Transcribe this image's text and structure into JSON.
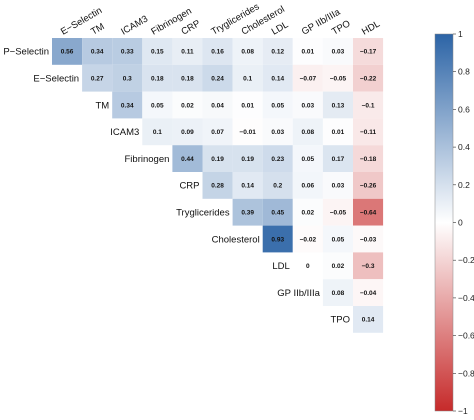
{
  "chart_data": {
    "type": "heatmap",
    "variables": [
      "P−Selectin",
      "E−Selectin",
      "TM",
      "ICAM3",
      "Fibrinogen",
      "CRP",
      "Tryglicerides",
      "Cholesterol",
      "LDL",
      "GP IIb/IIIa",
      "TPO",
      "HDL"
    ],
    "rows": [
      {
        "label": "P−Selectin",
        "values": [
          "0.56",
          "0.34",
          "0.33",
          "0.15",
          "0.11",
          "0.16",
          "0.08",
          "0.12",
          "0.01",
          "0.03",
          "−0.17"
        ]
      },
      {
        "label": "E−Selectin",
        "values": [
          "0.27",
          "0.3",
          "0.18",
          "0.18",
          "0.24",
          "0.1",
          "0.14",
          "−0.07",
          "−0.05",
          "−0.22"
        ]
      },
      {
        "label": "TM",
        "values": [
          "0.34",
          "0.05",
          "0.02",
          "0.04",
          "0.01",
          "0.05",
          "0.03",
          "0.13",
          "−0.1"
        ]
      },
      {
        "label": "ICAM3",
        "values": [
          "0.1",
          "0.09",
          "0.07",
          "−0.01",
          "0.03",
          "0.08",
          "0.01",
          "−0.11"
        ]
      },
      {
        "label": "Fibrinogen",
        "values": [
          "0.44",
          "0.19",
          "0.19",
          "0.23",
          "0.05",
          "0.17",
          "−0.18"
        ]
      },
      {
        "label": "CRP",
        "values": [
          "0.28",
          "0.14",
          "0.2",
          "0.06",
          "0.03",
          "−0.26"
        ]
      },
      {
        "label": "Tryglicerides",
        "values": [
          "0.39",
          "0.45",
          "0.02",
          "−0.05",
          "−0.64"
        ]
      },
      {
        "label": "Cholesterol",
        "values": [
          "0.93",
          "−0.02",
          "0.05",
          "−0.03"
        ]
      },
      {
        "label": "LDL",
        "values": [
          "0",
          "0.02",
          "−0.3"
        ]
      },
      {
        "label": "GP IIb/IIIa",
        "values": [
          "0.08",
          "−0.04"
        ]
      },
      {
        "label": "TPO",
        "values": [
          "0.14"
        ]
      }
    ],
    "colorbar": {
      "range": [
        -1,
        1
      ],
      "ticks": [
        "1",
        "0.8",
        "0.6",
        "0.4",
        "0.2",
        "0",
        "−0.2",
        "−0.4",
        "−0.6",
        "−0.8",
        "−1"
      ],
      "negative_color": "#c62a2a",
      "zero_color": "#ffffff",
      "positive_color": "#2c64a6"
    }
  }
}
